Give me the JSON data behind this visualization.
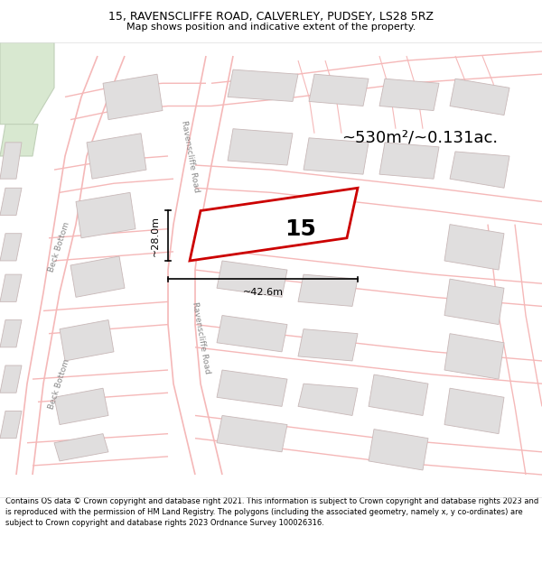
{
  "title_line1": "15, RAVENSCLIFFE ROAD, CALVERLEY, PUDSEY, LS28 5RZ",
  "title_line2": "Map shows position and indicative extent of the property.",
  "area_text": "~530m²/~0.131ac.",
  "label_15": "15",
  "dim_width": "~42.6m",
  "dim_height": "~28.0m",
  "footer_text": "Contains OS data © Crown copyright and database right 2021. This information is subject to Crown copyright and database rights 2023 and is reproduced with the permission of HM Land Registry. The polygons (including the associated geometry, namely x, y co-ordinates) are subject to Crown copyright and database rights 2023 Ordnance Survey 100026316.",
  "map_bg": "#ffffff",
  "road_color": "#f5b8b8",
  "road_lw": 1.0,
  "building_fill": "#e0dede",
  "building_outline": "#c8b8b8",
  "building_lw": 0.6,
  "highlight_fill": "#ffffff",
  "highlight_outline": "#cc0000",
  "highlight_lw": 2.0,
  "green_fill": "#d8e8d0",
  "green_outline": "#c0d0b8",
  "text_color": "#000000",
  "footer_bg": "#ffffff",
  "road_label_color": "#888888",
  "dim_color": "#000000",
  "title_fontsize": 9.0,
  "subtitle_fontsize": 8.0,
  "area_fontsize": 13,
  "label_fontsize": 18,
  "dim_fontsize": 8,
  "road_label_fontsize": 6.5,
  "footer_fontsize": 6.0
}
